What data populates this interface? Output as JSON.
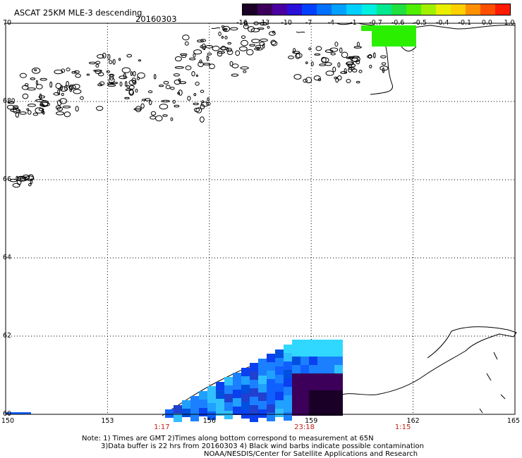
{
  "header": {
    "title": "ASCAT 25KM MLE-3 descending",
    "date": "20160303"
  },
  "colorbar": {
    "ticks": [
      "-16",
      "-13",
      "-10",
      "-7",
      "-4",
      "-1",
      "-0.7",
      "-0.6",
      "-0.5",
      "-0.4",
      "-0.1",
      "0.0",
      "1.0"
    ],
    "colors": [
      "#1a0026",
      "#3c005a",
      "#4a00a0",
      "#2a10d8",
      "#0040ff",
      "#0070ff",
      "#00a0ff",
      "#00d0ff",
      "#00f0e0",
      "#00e890",
      "#20e040",
      "#50ee00",
      "#a0f000",
      "#e8f000",
      "#ffd000",
      "#ff9000",
      "#ff5000",
      "#ff1a00"
    ]
  },
  "map": {
    "latitudes": [
      "70",
      "68",
      "66",
      "64",
      "62",
      "60"
    ],
    "longitudes": [
      "150",
      "153",
      "156",
      "159",
      "162",
      "165"
    ],
    "pass_times": [
      {
        "label": "1:17",
        "lon": 154.6
      },
      {
        "label": "23:18",
        "lon": 158.8
      },
      {
        "label": "1:15",
        "lon": 161.7
      }
    ]
  },
  "notes": {
    "line1": "Note: 1) Times are GMT 2)Times along bottom correspond to measurement at 65N",
    "line2": "3)Data buffer is 22 hrs from 20160303 4) Black wind barbs indicate possible contamination",
    "line3": "NOAA/NESDIS/Center for Satellite Applications and Research"
  }
}
